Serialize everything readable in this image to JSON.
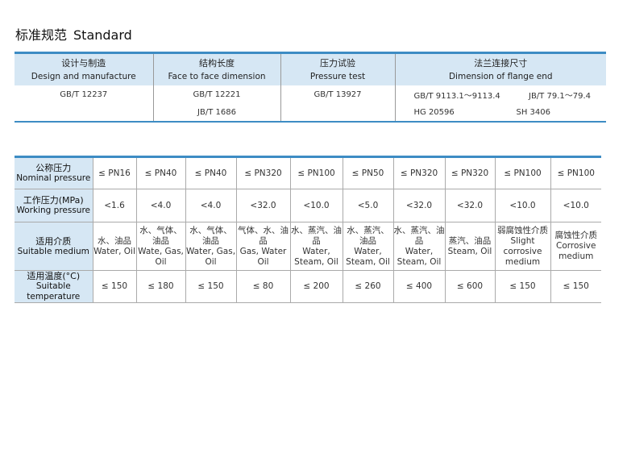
{
  "title": {
    "cn": "标准规范",
    "en": "Standard"
  },
  "standards": {
    "headers": [
      {
        "cn": "设计与制造",
        "en": "Design and manufacture"
      },
      {
        "cn": "结构长度",
        "en": "Face to face dimension"
      },
      {
        "cn": "压力试验",
        "en": "Pressure test"
      },
      {
        "cn": "法兰连接尺寸",
        "en": "Dimension of flange end"
      }
    ],
    "design": "GB/T 12237",
    "face": [
      "GB/T 12221",
      "JB/T 1686"
    ],
    "pressure_test": "GB/T 13927",
    "flange": [
      [
        "GB/T 9113.1～9113.4",
        "JB/T 79.1～79.4"
      ],
      [
        "HG 20596",
        "SH 3406"
      ]
    ]
  },
  "specs": {
    "rows": [
      {
        "cn": "公称压力",
        "en": "Nominal pressure",
        "values": [
          "≤ PN16",
          "≤ PN40",
          "≤ PN40",
          "≤ PN320",
          "≤ PN100",
          "≤ PN50",
          "≤ PN320",
          "≤ PN320",
          "≤ PN100",
          "≤ PN100"
        ]
      },
      {
        "cn": "工作压力(MPa)",
        "en": "Working pressure",
        "values": [
          "<1.6",
          "<4.0",
          "<4.0",
          "<32.0",
          "<10.0",
          "<5.0",
          "<32.0",
          "<32.0",
          "<10.0",
          "<10.0"
        ]
      },
      {
        "cn": "适用介质",
        "en": "Suitable medium",
        "media": [
          {
            "cn": "水、油品",
            "en": "Water, Oil"
          },
          {
            "cn": "水、气体、油品",
            "en": "Wate, Gas, Oil"
          },
          {
            "cn": "水、气体、油品",
            "en": "Water, Gas, Oil"
          },
          {
            "cn": "气体、水、油品",
            "en": "Gas, Water Oil"
          },
          {
            "cn": "水、蒸汽、油品",
            "en": "Water, Steam, Oil"
          },
          {
            "cn": "水、蒸汽、油品",
            "en": "Water, Steam, Oil"
          },
          {
            "cn": "水、蒸汽、油品",
            "en": "Water, Steam, Oil"
          },
          {
            "cn": "蒸汽、油品",
            "en": "Steam, Oil"
          },
          {
            "cn": "弱腐蚀性介质",
            "en": "Slight corrosive medium"
          },
          {
            "cn": "腐蚀性介质",
            "en": "Corrosive medium"
          }
        ]
      },
      {
        "cn": "适用温度(°C)",
        "en": "Suitable temperature",
        "values": [
          "≤ 150",
          "≤ 180",
          "≤ 150",
          "≤ 80",
          "≤ 200",
          "≤ 260",
          "≤ 400",
          "≤ 600",
          "≤ 150",
          "≤ 150"
        ]
      }
    ]
  },
  "colors": {
    "accent": "#3d8cc4",
    "header_bg": "#d6e7f4"
  }
}
